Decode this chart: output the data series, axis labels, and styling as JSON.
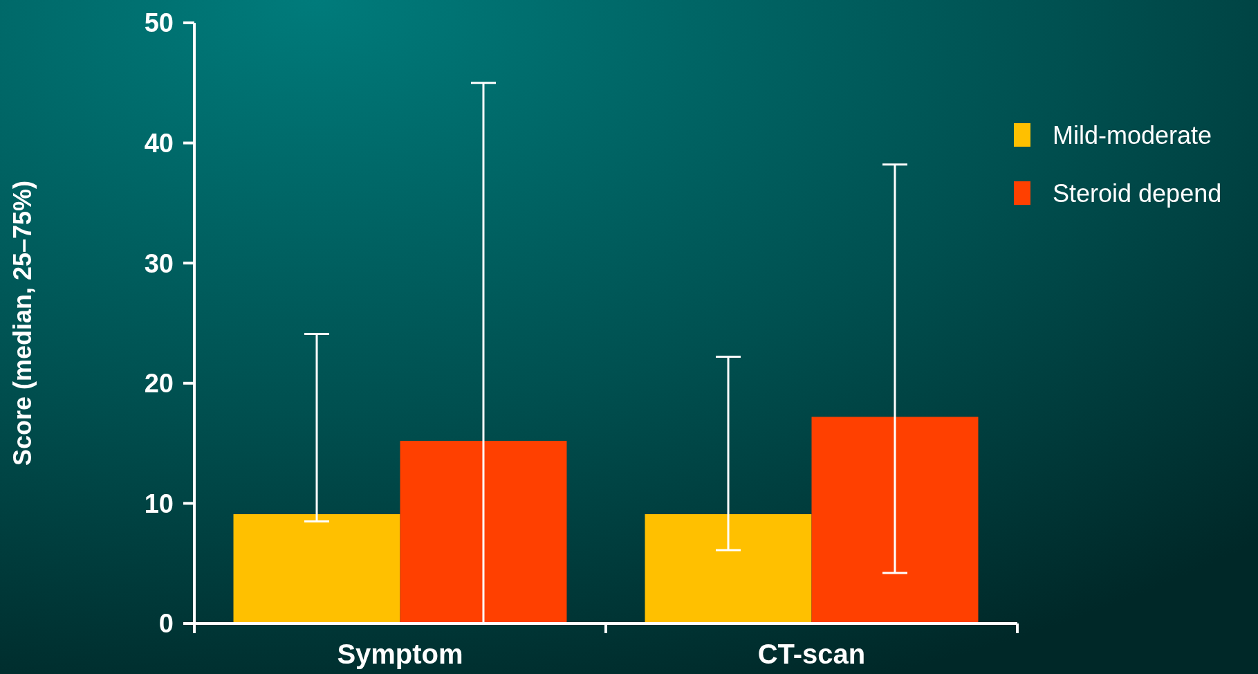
{
  "chart_data": {
    "type": "bar",
    "ylabel": "Score (median, 25–75%)",
    "categories": [
      "Symptom",
      "CT-scan"
    ],
    "series": [
      {
        "name": "Mild-moderate",
        "color": "#ffc000",
        "values": [
          9.1,
          9.1
        ],
        "errors": [
          [
            8.5,
            24.1
          ],
          [
            6.1,
            22.2
          ]
        ]
      },
      {
        "name": "Steroid depend",
        "color": "#ff4000",
        "values": [
          15.2,
          17.2
        ],
        "errors": [
          [
            0,
            45
          ],
          [
            4.2,
            38.2
          ]
        ]
      }
    ],
    "ylim": [
      0,
      50
    ],
    "yticks": [
      0,
      10,
      20,
      30,
      40,
      50
    ],
    "grid": false,
    "legend": "top right"
  }
}
